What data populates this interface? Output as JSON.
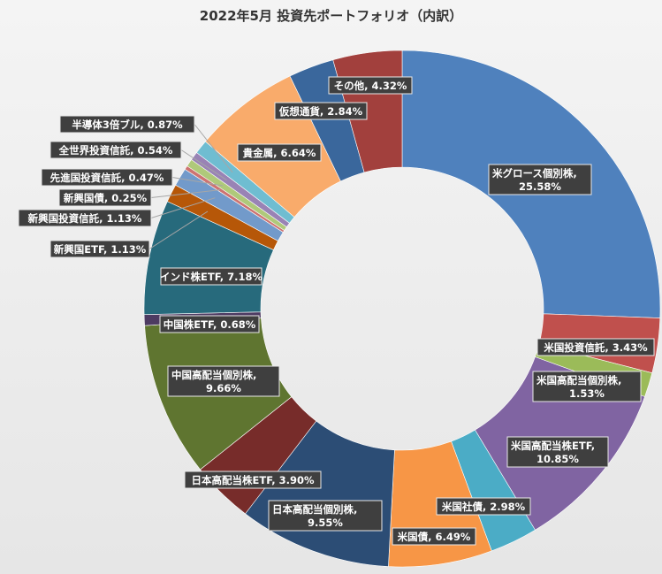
{
  "chart_data": {
    "type": "pie",
    "donut": true,
    "title": "2022年5月 投資先ポートフォリオ（内訳）",
    "slices": [
      {
        "name": "米グロース個別株",
        "value": 25.58,
        "label": "25.58%",
        "color": "#4f81bd"
      },
      {
        "name": "米国投資信託",
        "value": 3.43,
        "label": "3.43%",
        "color": "#c0504d"
      },
      {
        "name": "米国高配当個別株",
        "value": 1.53,
        "label": "1.53%",
        "color": "#9bbb59"
      },
      {
        "name": "米国高配当株ETF",
        "value": 10.85,
        "label": "10.85%",
        "color": "#8064a2"
      },
      {
        "name": "米国社債",
        "value": 2.98,
        "label": "2.98%",
        "color": "#4bacc6"
      },
      {
        "name": "米国債",
        "value": 6.49,
        "label": "6.49%",
        "color": "#f79646"
      },
      {
        "name": "日本高配当個別株",
        "value": 9.55,
        "label": "9.55%",
        "color": "#2c4d75"
      },
      {
        "name": "日本高配当株ETF",
        "value": 3.9,
        "label": "3.90%",
        "color": "#772c2a"
      },
      {
        "name": "中国高配当個別株",
        "value": 9.66,
        "label": "9.66%",
        "color": "#5f7530"
      },
      {
        "name": "中国株ETF",
        "value": 0.68,
        "label": "0.68%",
        "color": "#4d3b62"
      },
      {
        "name": "インド株ETF",
        "value": 7.18,
        "label": "7.18%",
        "color": "#276a7c"
      },
      {
        "name": "新興国ETF",
        "value": 1.13,
        "label": "1.13%",
        "color": "#b65708"
      },
      {
        "name": "新興国投資信託",
        "value": 1.13,
        "label": "1.13%",
        "color": "#729aca"
      },
      {
        "name": "新興国債",
        "value": 0.25,
        "label": "0.25%",
        "color": "#cd7371"
      },
      {
        "name": "先進国投資信託",
        "value": 0.47,
        "label": "0.47%",
        "color": "#afc97a"
      },
      {
        "name": "全世界投資信託",
        "value": 0.54,
        "label": "0.54%",
        "color": "#9983b5"
      },
      {
        "name": "半導体3倍ブル",
        "value": 0.87,
        "label": "0.87%",
        "color": "#6fbdd1"
      },
      {
        "name": "貴金属",
        "value": 6.64,
        "label": "6.64%",
        "color": "#f9ab6b"
      },
      {
        "name": "仮想通貨",
        "value": 2.84,
        "label": "2.84%",
        "color": "#3a679c"
      },
      {
        "name": "その他",
        "value": 4.32,
        "label": "4.32%",
        "color": "#a2403d"
      }
    ]
  }
}
